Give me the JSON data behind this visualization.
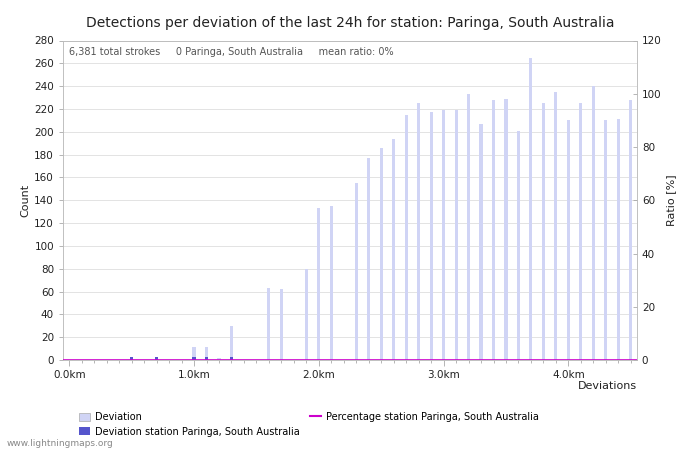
{
  "title": "Detections per deviation of the last 24h for station: Paringa, South Australia",
  "subtitle": "6,381 total strokes     0 Paringa, South Australia     mean ratio: 0%",
  "xlabel": "Deviations",
  "ylabel_left": "Count",
  "ylabel_right": "Ratio [%]",
  "ylim_left": [
    0,
    280
  ],
  "ylim_right": [
    0,
    120
  ],
  "yticks_left": [
    0,
    20,
    40,
    60,
    80,
    100,
    120,
    140,
    160,
    180,
    200,
    220,
    240,
    260,
    280
  ],
  "yticks_right": [
    0,
    20,
    40,
    60,
    80,
    100,
    120
  ],
  "xtick_positions": [
    0,
    10,
    20,
    30,
    40
  ],
  "xtick_labels": [
    "0.0km",
    "1.0km",
    "2.0km",
    "3.0km",
    "4.0km"
  ],
  "bar_color_light": "#d0d4f5",
  "bar_color_dark": "#5555cc",
  "line_color": "#cc00cc",
  "background_color": "#ffffff",
  "grid_color": "#d8d8d8",
  "text_color": "#222222",
  "title_fontsize": 10,
  "subtitle_fontsize": 7,
  "axis_fontsize": 8,
  "tick_fontsize": 7.5,
  "watermark": "www.lightningmaps.org",
  "all_bar_heights": [
    0,
    0,
    0,
    0,
    0,
    1,
    0,
    2,
    0,
    0,
    11,
    11,
    2,
    30,
    0,
    0,
    63,
    62,
    0,
    80,
    133,
    135,
    0,
    155,
    177,
    186,
    194,
    215,
    225,
    217,
    219,
    219,
    233,
    207,
    228,
    229,
    201,
    265,
    225,
    235,
    210,
    225,
    240,
    210,
    211,
    228
  ],
  "station_indices": [
    5,
    7,
    10,
    11,
    13
  ],
  "mean_ratio": 0,
  "n_bars": 46
}
